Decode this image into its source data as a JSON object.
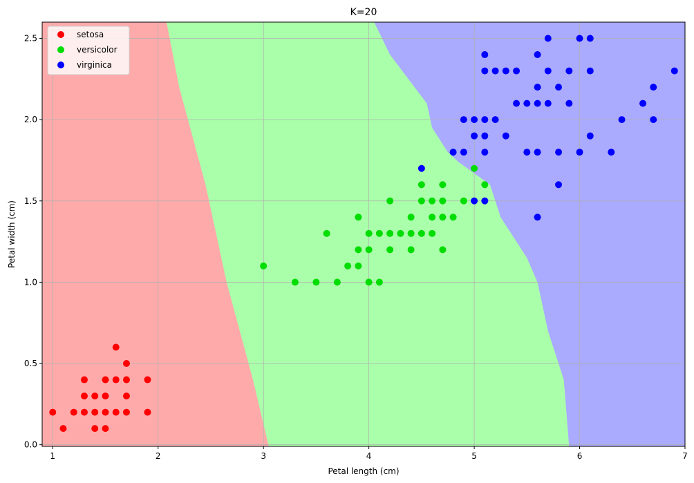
{
  "chart_data": {
    "type": "scatter",
    "title": "K=20",
    "xlabel": "Petal length (cm)",
    "ylabel": "Petal width (cm)",
    "xlim": [
      0.9,
      7.0
    ],
    "ylim": [
      -0.01,
      2.6
    ],
    "x_ticks": [
      1,
      2,
      3,
      4,
      5,
      6,
      7
    ],
    "y_ticks": [
      0.0,
      0.5,
      1.0,
      1.5,
      2.0,
      2.5
    ],
    "x_tick_labels": [
      "1",
      "2",
      "3",
      "4",
      "5",
      "6",
      "7"
    ],
    "y_tick_labels": [
      "0.0",
      "0.5",
      "1.0",
      "1.5",
      "2.0",
      "2.5"
    ],
    "grid": true,
    "legend_position": "top-left",
    "decision_regions": {
      "colors": [
        "#ffaaaa",
        "#aaffaa",
        "#aaaaff"
      ],
      "setosa_versicolor_boundary": [
        [
          2.08,
          2.6
        ],
        [
          2.2,
          2.2
        ],
        [
          2.45,
          1.6
        ],
        [
          2.65,
          1.0
        ],
        [
          2.9,
          0.4
        ],
        [
          3.05,
          -0.01
        ]
      ],
      "versicolor_virginica_boundary": [
        [
          4.05,
          2.6
        ],
        [
          4.2,
          2.4
        ],
        [
          4.55,
          2.1
        ],
        [
          4.6,
          1.95
        ],
        [
          4.75,
          1.8
        ],
        [
          4.85,
          1.74
        ],
        [
          5.15,
          1.6
        ],
        [
          5.25,
          1.4
        ],
        [
          5.5,
          1.15
        ],
        [
          5.6,
          1.0
        ],
        [
          5.7,
          0.7
        ],
        [
          5.85,
          0.4
        ],
        [
          5.9,
          -0.01
        ]
      ]
    },
    "series": [
      {
        "name": "setosa",
        "color": "#ff0000",
        "points": [
          [
            1.0,
            0.2
          ],
          [
            1.1,
            0.1
          ],
          [
            1.2,
            0.2
          ],
          [
            1.3,
            0.2
          ],
          [
            1.3,
            0.3
          ],
          [
            1.3,
            0.4
          ],
          [
            1.4,
            0.1
          ],
          [
            1.4,
            0.2
          ],
          [
            1.4,
            0.3
          ],
          [
            1.5,
            0.1
          ],
          [
            1.5,
            0.2
          ],
          [
            1.5,
            0.3
          ],
          [
            1.5,
            0.4
          ],
          [
            1.6,
            0.2
          ],
          [
            1.6,
            0.4
          ],
          [
            1.6,
            0.6
          ],
          [
            1.7,
            0.2
          ],
          [
            1.7,
            0.3
          ],
          [
            1.7,
            0.4
          ],
          [
            1.7,
            0.5
          ],
          [
            1.9,
            0.2
          ],
          [
            1.9,
            0.4
          ]
        ]
      },
      {
        "name": "versicolor",
        "color": "#00dd00",
        "points": [
          [
            3.0,
            1.1
          ],
          [
            3.3,
            1.0
          ],
          [
            3.5,
            1.0
          ],
          [
            3.6,
            1.3
          ],
          [
            3.7,
            1.0
          ],
          [
            3.8,
            1.1
          ],
          [
            3.9,
            1.1
          ],
          [
            3.9,
            1.2
          ],
          [
            3.9,
            1.4
          ],
          [
            4.0,
            1.0
          ],
          [
            4.0,
            1.2
          ],
          [
            4.0,
            1.3
          ],
          [
            4.1,
            1.0
          ],
          [
            4.1,
            1.3
          ],
          [
            4.2,
            1.2
          ],
          [
            4.2,
            1.3
          ],
          [
            4.2,
            1.5
          ],
          [
            4.3,
            1.3
          ],
          [
            4.4,
            1.2
          ],
          [
            4.4,
            1.3
          ],
          [
            4.4,
            1.4
          ],
          [
            4.5,
            1.3
          ],
          [
            4.5,
            1.5
          ],
          [
            4.5,
            1.6
          ],
          [
            4.6,
            1.3
          ],
          [
            4.6,
            1.4
          ],
          [
            4.6,
            1.5
          ],
          [
            4.7,
            1.2
          ],
          [
            4.7,
            1.4
          ],
          [
            4.7,
            1.5
          ],
          [
            4.7,
            1.6
          ],
          [
            4.8,
            1.4
          ],
          [
            4.8,
            1.8
          ],
          [
            4.9,
            1.5
          ],
          [
            5.0,
            1.7
          ],
          [
            5.1,
            1.6
          ]
        ]
      },
      {
        "name": "virginica",
        "color": "#0000ff",
        "points": [
          [
            4.5,
            1.7
          ],
          [
            4.8,
            1.8
          ],
          [
            4.9,
            1.8
          ],
          [
            4.9,
            2.0
          ],
          [
            5.0,
            1.5
          ],
          [
            5.0,
            1.9
          ],
          [
            5.0,
            2.0
          ],
          [
            5.1,
            1.5
          ],
          [
            5.1,
            1.8
          ],
          [
            5.1,
            1.9
          ],
          [
            5.1,
            2.0
          ],
          [
            5.1,
            2.3
          ],
          [
            5.1,
            2.4
          ],
          [
            5.2,
            2.0
          ],
          [
            5.2,
            2.3
          ],
          [
            5.3,
            1.9
          ],
          [
            5.3,
            2.3
          ],
          [
            5.4,
            2.1
          ],
          [
            5.4,
            2.3
          ],
          [
            5.5,
            1.8
          ],
          [
            5.5,
            2.1
          ],
          [
            5.6,
            1.4
          ],
          [
            5.6,
            1.8
          ],
          [
            5.6,
            2.1
          ],
          [
            5.6,
            2.2
          ],
          [
            5.6,
            2.4
          ],
          [
            5.7,
            2.1
          ],
          [
            5.7,
            2.3
          ],
          [
            5.7,
            2.5
          ],
          [
            5.8,
            1.6
          ],
          [
            5.8,
            1.8
          ],
          [
            5.8,
            2.2
          ],
          [
            5.9,
            2.1
          ],
          [
            5.9,
            2.3
          ],
          [
            6.0,
            1.8
          ],
          [
            6.0,
            2.5
          ],
          [
            6.1,
            1.9
          ],
          [
            6.1,
            2.3
          ],
          [
            6.1,
            2.5
          ],
          [
            6.3,
            1.8
          ],
          [
            6.4,
            2.0
          ],
          [
            6.6,
            2.1
          ],
          [
            6.7,
            2.0
          ],
          [
            6.7,
            2.2
          ],
          [
            6.9,
            2.3
          ]
        ]
      }
    ]
  }
}
